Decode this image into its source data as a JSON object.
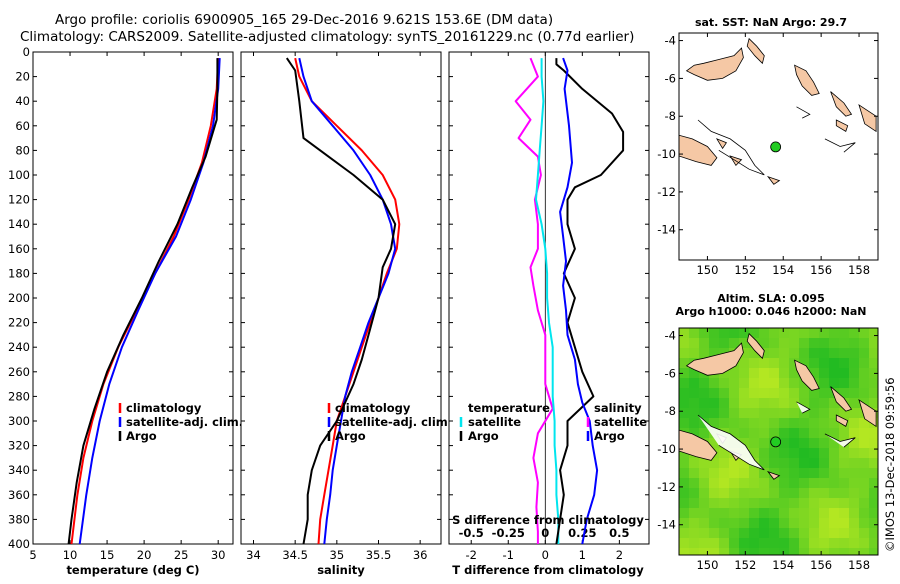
{
  "header": {
    "line1": "Argo profile: coriolis 6900905_165 29-Dec-2016 9.621S 153.6E (DM data)",
    "line2": "Climatology: CARS2009. Satellite-adjusted climatology: synTS_20161229.nc (0.77d earlier)"
  },
  "colors": {
    "climatology": "#ff0000",
    "satellite": "#0000ff",
    "argo": "#000000",
    "s_diff": "#ff00ff",
    "t_sat": "#00e5ee",
    "land": "#f5c8a5",
    "ocean_low": "#22bb22",
    "ocean_high": "#ccee22",
    "marker": "#22cc22"
  },
  "chart_data": [
    {
      "id": "temperature",
      "type": "line",
      "xlabel": "temperature (deg C)",
      "ylabel": "",
      "xlim": [
        5,
        32
      ],
      "ylim": [
        400,
        0
      ],
      "xticks": [
        5,
        10,
        15,
        20,
        25,
        30
      ],
      "yticks": [
        0,
        20,
        40,
        60,
        80,
        100,
        120,
        140,
        160,
        180,
        200,
        220,
        240,
        260,
        280,
        300,
        320,
        340,
        360,
        380,
        400
      ],
      "legend": [
        "climatology",
        "satellite-adj. clim.",
        "Argo"
      ],
      "series": [
        {
          "name": "climatology",
          "color": "#ff0000",
          "points": [
            [
              30.0,
              5
            ],
            [
              29.8,
              30
            ],
            [
              29.0,
              60
            ],
            [
              27.8,
              90
            ],
            [
              26.0,
              120
            ],
            [
              24.0,
              150
            ],
            [
              21.5,
              180
            ],
            [
              19.0,
              210
            ],
            [
              16.5,
              240
            ],
            [
              14.5,
              270
            ],
            [
              13.0,
              300
            ],
            [
              11.8,
              330
            ],
            [
              11.0,
              360
            ],
            [
              10.2,
              400
            ]
          ]
        },
        {
          "name": "satellite-adj. clim.",
          "color": "#0000ff",
          "points": [
            [
              30.2,
              5
            ],
            [
              30.0,
              30
            ],
            [
              29.3,
              60
            ],
            [
              28.0,
              90
            ],
            [
              26.3,
              120
            ],
            [
              24.3,
              150
            ],
            [
              21.5,
              180
            ],
            [
              19.2,
              210
            ],
            [
              17.0,
              240
            ],
            [
              15.3,
              270
            ],
            [
              14.0,
              300
            ],
            [
              13.0,
              330
            ],
            [
              12.2,
              360
            ],
            [
              11.3,
              400
            ]
          ]
        },
        {
          "name": "Argo",
          "color": "#000000",
          "points": [
            [
              29.9,
              5
            ],
            [
              29.9,
              30
            ],
            [
              29.8,
              55
            ],
            [
              28.3,
              85
            ],
            [
              26.5,
              110
            ],
            [
              24.5,
              140
            ],
            [
              22.0,
              170
            ],
            [
              19.7,
              200
            ],
            [
              17.2,
              230
            ],
            [
              15.0,
              260
            ],
            [
              13.3,
              290
            ],
            [
              11.8,
              320
            ],
            [
              10.9,
              350
            ],
            [
              10.2,
              380
            ],
            [
              9.8,
              400
            ]
          ]
        }
      ]
    },
    {
      "id": "salinity",
      "type": "line",
      "xlabel": "salinity",
      "ylabel": "",
      "xlim": [
        33.85,
        36.25
      ],
      "ylim": [
        400,
        0
      ],
      "xticks": [
        34,
        34.5,
        35,
        35.5,
        36
      ],
      "legend": [
        "climatology",
        "satellite-adj. clim.",
        "Argo"
      ],
      "series": [
        {
          "name": "climatology",
          "color": "#ff0000",
          "points": [
            [
              34.5,
              5
            ],
            [
              34.55,
              20
            ],
            [
              34.7,
              40
            ],
            [
              35.0,
              60
            ],
            [
              35.3,
              80
            ],
            [
              35.55,
              100
            ],
            [
              35.7,
              120
            ],
            [
              35.75,
              140
            ],
            [
              35.72,
              160
            ],
            [
              35.6,
              180
            ],
            [
              35.5,
              200
            ],
            [
              35.4,
              220
            ],
            [
              35.3,
              240
            ],
            [
              35.2,
              260
            ],
            [
              35.1,
              280
            ],
            [
              35.0,
              300
            ],
            [
              34.95,
              320
            ],
            [
              34.9,
              340
            ],
            [
              34.85,
              360
            ],
            [
              34.8,
              380
            ],
            [
              34.78,
              400
            ]
          ]
        },
        {
          "name": "satellite-adj. clim.",
          "color": "#0000ff",
          "points": [
            [
              34.55,
              5
            ],
            [
              34.6,
              20
            ],
            [
              34.7,
              40
            ],
            [
              34.95,
              60
            ],
            [
              35.2,
              80
            ],
            [
              35.4,
              100
            ],
            [
              35.55,
              120
            ],
            [
              35.65,
              140
            ],
            [
              35.7,
              160
            ],
            [
              35.62,
              180
            ],
            [
              35.5,
              200
            ],
            [
              35.38,
              220
            ],
            [
              35.28,
              240
            ],
            [
              35.18,
              260
            ],
            [
              35.1,
              280
            ],
            [
              35.05,
              300
            ],
            [
              35.0,
              320
            ],
            [
              34.95,
              340
            ],
            [
              34.92,
              360
            ],
            [
              34.88,
              380
            ],
            [
              34.85,
              400
            ]
          ]
        },
        {
          "name": "Argo",
          "color": "#000000",
          "points": [
            [
              34.4,
              5
            ],
            [
              34.5,
              15
            ],
            [
              34.55,
              40
            ],
            [
              34.6,
              70
            ],
            [
              34.9,
              85
            ],
            [
              35.2,
              100
            ],
            [
              35.55,
              120
            ],
            [
              35.7,
              140
            ],
            [
              35.65,
              160
            ],
            [
              35.55,
              175
            ],
            [
              35.5,
              200
            ],
            [
              35.4,
              225
            ],
            [
              35.3,
              250
            ],
            [
              35.2,
              270
            ],
            [
              35.0,
              300
            ],
            [
              34.8,
              320
            ],
            [
              34.7,
              340
            ],
            [
              34.65,
              360
            ],
            [
              34.65,
              380
            ],
            [
              34.6,
              400
            ]
          ]
        }
      ]
    },
    {
      "id": "differences",
      "type": "line",
      "xlabel": "T difference from climatology",
      "x2label": "S difference from climatology",
      "xlim": [
        -2.6,
        2.8
      ],
      "x2lim": [
        -0.65,
        0.7
      ],
      "ylim": [
        400,
        0
      ],
      "xticks": [
        -2,
        -1,
        0,
        1,
        2
      ],
      "x2ticks": [
        -0.5,
        -0.25,
        0,
        0.25,
        0.5
      ],
      "legend_left_title": "temperature",
      "legend_right_title": "salinity",
      "legend_items": [
        "satellite",
        "Argo"
      ],
      "series": [
        {
          "name": "S satellite",
          "axis": "x2",
          "color": "#ff00ff",
          "points": [
            [
              -0.1,
              5
            ],
            [
              -0.05,
              20
            ],
            [
              -0.2,
              40
            ],
            [
              -0.1,
              55
            ],
            [
              -0.18,
              70
            ],
            [
              -0.05,
              85
            ],
            [
              -0.03,
              100
            ],
            [
              -0.07,
              120
            ],
            [
              -0.05,
              140
            ],
            [
              -0.05,
              160
            ],
            [
              -0.1,
              175
            ],
            [
              -0.08,
              190
            ],
            [
              -0.05,
              210
            ],
            [
              0.0,
              230
            ],
            [
              0.0,
              250
            ],
            [
              0.0,
              270
            ],
            [
              0.05,
              290
            ],
            [
              -0.05,
              310
            ],
            [
              -0.08,
              330
            ],
            [
              -0.05,
              350
            ],
            [
              -0.06,
              370
            ],
            [
              -0.05,
              390
            ],
            [
              -0.05,
              400
            ]
          ]
        },
        {
          "name": "T satellite",
          "axis": "x",
          "color": "#00e5ee",
          "points": [
            [
              -0.1,
              5
            ],
            [
              -0.1,
              20
            ],
            [
              -0.05,
              40
            ],
            [
              -0.1,
              60
            ],
            [
              -0.15,
              80
            ],
            [
              -0.2,
              100
            ],
            [
              -0.25,
              120
            ],
            [
              -0.1,
              140
            ],
            [
              0.0,
              160
            ],
            [
              0.05,
              180
            ],
            [
              0.05,
              200
            ],
            [
              0.1,
              220
            ],
            [
              0.2,
              240
            ],
            [
              0.2,
              260
            ],
            [
              0.2,
              280
            ],
            [
              0.25,
              300
            ],
            [
              0.25,
              320
            ],
            [
              0.3,
              340
            ],
            [
              0.3,
              360
            ],
            [
              0.35,
              380
            ],
            [
              0.35,
              400
            ]
          ]
        },
        {
          "name": "T Argo",
          "axis": "x",
          "color": "#000000",
          "points": [
            [
              0.3,
              5
            ],
            [
              0.3,
              10
            ],
            [
              0.5,
              15
            ],
            [
              1.0,
              30
            ],
            [
              1.8,
              50
            ],
            [
              2.1,
              65
            ],
            [
              2.1,
              80
            ],
            [
              1.5,
              100
            ],
            [
              0.8,
              110
            ],
            [
              0.6,
              120
            ],
            [
              0.6,
              140
            ],
            [
              0.8,
              160
            ],
            [
              0.5,
              180
            ],
            [
              0.8,
              200
            ],
            [
              0.6,
              220
            ],
            [
              0.8,
              240
            ],
            [
              1.0,
              260
            ],
            [
              1.3,
              280
            ],
            [
              0.6,
              300
            ],
            [
              0.6,
              320
            ],
            [
              0.4,
              340
            ],
            [
              0.5,
              360
            ],
            [
              0.4,
              380
            ],
            [
              0.3,
              400
            ]
          ]
        },
        {
          "name": "S Argo",
          "axis": "x2",
          "color": "#0000ff",
          "points": [
            [
              0.12,
              5
            ],
            [
              0.15,
              15
            ],
            [
              0.13,
              30
            ],
            [
              0.16,
              60
            ],
            [
              0.18,
              90
            ],
            [
              0.15,
              110
            ],
            [
              0.1,
              130
            ],
            [
              0.12,
              150
            ],
            [
              0.14,
              170
            ],
            [
              0.12,
              190
            ],
            [
              0.14,
              210
            ],
            [
              0.15,
              230
            ],
            [
              0.2,
              250
            ],
            [
              0.22,
              270
            ],
            [
              0.25,
              285
            ],
            [
              0.3,
              300
            ],
            [
              0.32,
              320
            ],
            [
              0.35,
              340
            ],
            [
              0.33,
              360
            ],
            [
              0.28,
              380
            ],
            [
              0.25,
              400
            ]
          ]
        }
      ]
    },
    {
      "id": "sst_map",
      "type": "map",
      "title": "sat. SST: NaN Argo: 29.7",
      "xlim": [
        148.5,
        159
      ],
      "ylim": [
        -15.6,
        -3.6
      ],
      "xticks": [
        150,
        152,
        154,
        156,
        158
      ],
      "yticks": [
        -4,
        -6,
        -8,
        -10,
        -12,
        -14
      ],
      "marker": {
        "lon": 153.6,
        "lat": -9.621
      }
    },
    {
      "id": "sla_map",
      "type": "map",
      "title_line1": "Altim. SLA: 0.095",
      "title_line2": "Argo h1000: 0.046 h2000: NaN",
      "xlim": [
        148.5,
        159
      ],
      "ylim": [
        -15.6,
        -3.6
      ],
      "xticks": [
        150,
        152,
        154,
        156,
        158
      ],
      "yticks": [
        -4,
        -6,
        -8,
        -10,
        -12,
        -14
      ],
      "marker": {
        "lon": 153.6,
        "lat": -9.621
      }
    }
  ],
  "footer": {
    "watermark": "©IMOS 13-Dec-2018 09:59:56"
  }
}
